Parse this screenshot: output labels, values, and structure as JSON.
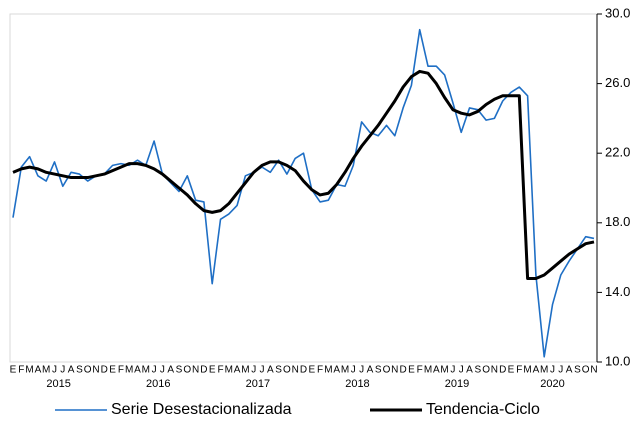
{
  "chart_data": {
    "type": "line",
    "categories": [
      "E",
      "F",
      "M",
      "A",
      "M",
      "J",
      "J",
      "A",
      "S",
      "O",
      "N",
      "D",
      "E",
      "F",
      "M",
      "A",
      "M",
      "J",
      "J",
      "A",
      "S",
      "O",
      "N",
      "D",
      "E",
      "F",
      "M",
      "A",
      "M",
      "J",
      "J",
      "A",
      "S",
      "O",
      "N",
      "D",
      "E",
      "F",
      "M",
      "A",
      "M",
      "J",
      "J",
      "A",
      "S",
      "O",
      "N",
      "D",
      "E",
      "F",
      "M",
      "A",
      "M",
      "J",
      "J",
      "A",
      "S",
      "O",
      "N",
      "D",
      "E",
      "F",
      "M",
      "A",
      "M",
      "J",
      "J",
      "A",
      "S",
      "O",
      "N"
    ],
    "years": [
      "2015",
      "2016",
      "2017",
      "2018",
      "2019",
      "2020"
    ],
    "series": [
      {
        "name": "Serie Desestacionalizada",
        "color": "#1f6fc5",
        "width": 1.6,
        "values": [
          18.3,
          21.2,
          21.8,
          20.7,
          20.4,
          21.5,
          20.1,
          20.9,
          20.8,
          20.4,
          20.7,
          20.8,
          21.3,
          21.4,
          21.3,
          21.6,
          21.3,
          22.7,
          20.8,
          20.3,
          19.8,
          20.7,
          19.3,
          19.2,
          14.5,
          18.2,
          18.5,
          19.0,
          20.7,
          20.9,
          21.2,
          20.9,
          21.6,
          20.8,
          21.7,
          22.0,
          19.9,
          19.2,
          19.3,
          20.2,
          20.1,
          21.3,
          23.8,
          23.2,
          23.0,
          23.6,
          23.0,
          24.6,
          25.9,
          29.1,
          27.0,
          27.0,
          26.5,
          24.9,
          23.2,
          24.6,
          24.5,
          23.9,
          24.0,
          25.0,
          25.5,
          25.8,
          25.3,
          15.0,
          10.3,
          13.3,
          15.0,
          15.8,
          16.5,
          17.2,
          17.1
        ]
      },
      {
        "name": "Tendencia-Ciclo",
        "color": "#000000",
        "width": 3,
        "values": [
          20.9,
          21.1,
          21.2,
          21.1,
          20.9,
          20.8,
          20.7,
          20.6,
          20.6,
          20.6,
          20.7,
          20.8,
          21.0,
          21.2,
          21.4,
          21.4,
          21.3,
          21.1,
          20.8,
          20.4,
          20.0,
          19.6,
          19.1,
          18.7,
          18.6,
          18.7,
          19.1,
          19.7,
          20.3,
          20.9,
          21.3,
          21.5,
          21.5,
          21.3,
          21.0,
          20.4,
          19.9,
          19.6,
          19.7,
          20.2,
          20.9,
          21.7,
          22.4,
          23.0,
          23.6,
          24.3,
          25.0,
          25.8,
          26.4,
          26.7,
          26.6,
          26.0,
          25.2,
          24.5,
          24.3,
          24.2,
          24.4,
          24.8,
          25.1,
          25.3,
          25.3,
          25.3,
          14.8,
          14.8,
          15.0,
          15.4,
          15.8,
          16.2,
          16.5,
          16.8,
          16.9
        ]
      }
    ],
    "ylim": [
      10,
      30
    ],
    "yticks": [
      {
        "value": 10,
        "label": "10.0"
      },
      {
        "value": 14,
        "label": "14.0"
      },
      {
        "value": 18,
        "label": "18.0"
      },
      {
        "value": 22,
        "label": "22.0"
      },
      {
        "value": 26,
        "label": "26.0"
      },
      {
        "value": 30,
        "label": "30.0"
      }
    ],
    "y_axis_side": "right"
  }
}
